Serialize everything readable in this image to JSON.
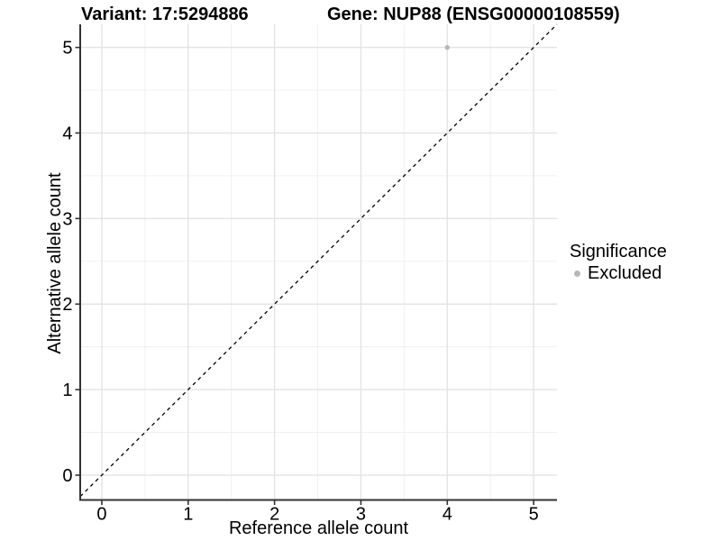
{
  "header": {
    "variant_title": "Variant: 17:5294886",
    "gene_title": "Gene: NUP88 (ENSG00000108559)"
  },
  "chart_data": {
    "type": "scatter",
    "title_left": "Variant: 17:5294886",
    "title_right": "Gene: NUP88 (ENSG00000108559)",
    "xlabel": "Reference allele count",
    "ylabel": "Alternative allele count",
    "xlim": [
      -0.25,
      5.27
    ],
    "ylim": [
      -0.29,
      5.27
    ],
    "xticks": [
      0,
      1,
      2,
      3,
      4,
      5
    ],
    "yticks": [
      0,
      1,
      2,
      3,
      4,
      5
    ],
    "grid": {
      "major": true,
      "minor": true
    },
    "series": [
      {
        "name": "Excluded",
        "color": "#b8b8b8",
        "points": [
          {
            "x": 4,
            "y": 5
          }
        ]
      }
    ],
    "reference_line": {
      "type": "identity",
      "slope": 1,
      "intercept": 0,
      "style": "dashed",
      "color": "#000000"
    },
    "legend": {
      "title": "Significance",
      "position": "right",
      "items": [
        {
          "label": "Excluded",
          "color": "#b8b8b8"
        }
      ]
    }
  },
  "colors": {
    "background": "#ffffff",
    "grid_major": "#e4e4e4",
    "grid_minor": "#f0f0f0",
    "axis": "#333333",
    "point": "#b8b8b8",
    "reference_line": "#000000",
    "text": "#000000"
  }
}
